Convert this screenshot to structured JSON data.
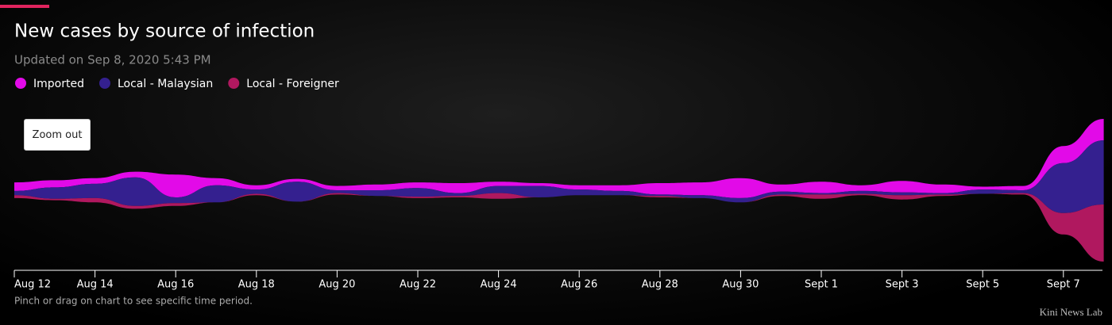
{
  "chart_data": {
    "type": "streamgraph",
    "title": "New cases by source of infection",
    "subtitle": "Updated on Sep 8, 2020 5:43 PM",
    "note": "Pinch or drag on chart to see specific time period.",
    "categories": [
      "Aug 12",
      null,
      "Aug 14",
      null,
      "Aug 16",
      null,
      "Aug 18",
      null,
      "Aug 20",
      null,
      "Aug 22",
      null,
      "Aug 24",
      null,
      "Aug 26",
      null,
      "Aug 28",
      null,
      "Aug 30",
      null,
      "Sept 1",
      null,
      "Sept 3",
      null,
      "Sept 5",
      null,
      "Sept 7",
      null
    ],
    "series": [
      {
        "name": "Imported",
        "color": "#e20ae8",
        "values": [
          6,
          5,
          4,
          4,
          16,
          5,
          3,
          2,
          3,
          4,
          4,
          7,
          3,
          2,
          3,
          4,
          8,
          9,
          14,
          5,
          8,
          4,
          8,
          6,
          2,
          3,
          12,
          15
        ]
      },
      {
        "name": "Local - Malaysian",
        "color": "#34208f",
        "values": [
          3,
          8,
          10,
          20,
          4,
          12,
          3,
          14,
          2,
          4,
          6,
          2,
          5,
          8,
          4,
          3,
          1,
          2,
          3,
          2,
          1,
          2,
          2,
          1,
          3,
          2,
          35,
          45
        ]
      },
      {
        "name": "Local - Foreigner",
        "color": "#b0185f",
        "values": [
          2,
          1,
          3,
          2,
          2,
          0,
          1,
          0,
          1,
          0,
          1,
          1,
          4,
          0,
          0,
          0,
          1,
          0,
          0,
          1,
          3,
          1,
          3,
          1,
          0,
          1,
          15,
          40
        ]
      }
    ]
  },
  "zoom_button": "Zoom out",
  "credit": "Kini News Lab"
}
